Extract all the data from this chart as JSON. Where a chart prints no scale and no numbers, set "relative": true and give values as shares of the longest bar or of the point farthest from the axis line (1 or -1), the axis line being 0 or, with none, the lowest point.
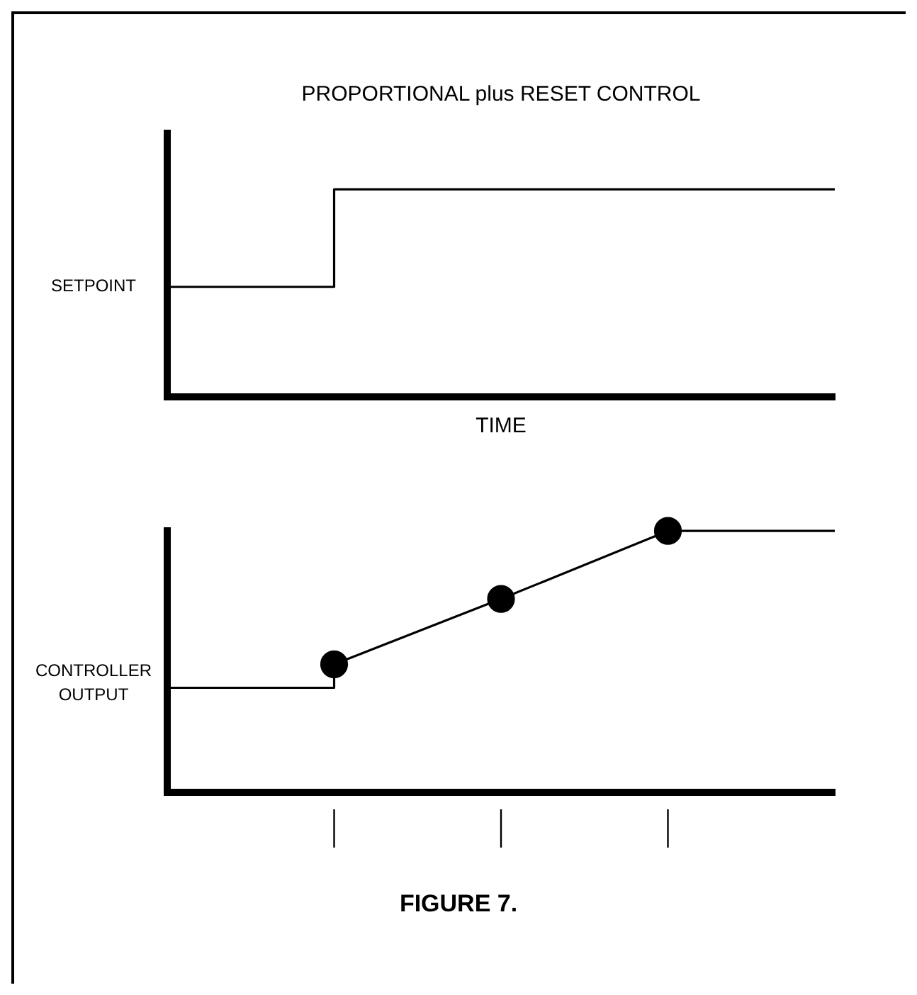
{
  "chart_data": [
    {
      "type": "step",
      "title": "PROPORTIONAL plus RESET CONTROL",
      "xlabel": "TIME",
      "ylabel": "SETPOINT",
      "relative": true,
      "tick_labels": false,
      "grid": false,
      "legend": false,
      "categories": [
        null,
        null,
        null,
        null,
        null
      ],
      "series": [
        {
          "color": "#000000",
          "values": [
            0.53,
            1,
            1,
            1,
            1
          ]
        }
      ]
    },
    {
      "type": "line",
      "ylabel": "CONTROLLER OUTPUT",
      "relative": true,
      "tick_labels": false,
      "grid": false,
      "legend": false,
      "annotations": [
        "FIGURE 7."
      ],
      "categories": [
        null,
        null,
        null,
        null,
        null
      ],
      "series": [
        {
          "type": "step",
          "color": "#000000",
          "values": [
            0.4,
            0.49,
            null,
            null,
            null
          ]
        },
        {
          "color": "#000000",
          "marker": "circle",
          "values": [
            null,
            0.49,
            0.74,
            1,
            null
          ]
        },
        {
          "color": "#000000",
          "values": [
            null,
            null,
            null,
            1,
            1
          ]
        }
      ]
    }
  ]
}
